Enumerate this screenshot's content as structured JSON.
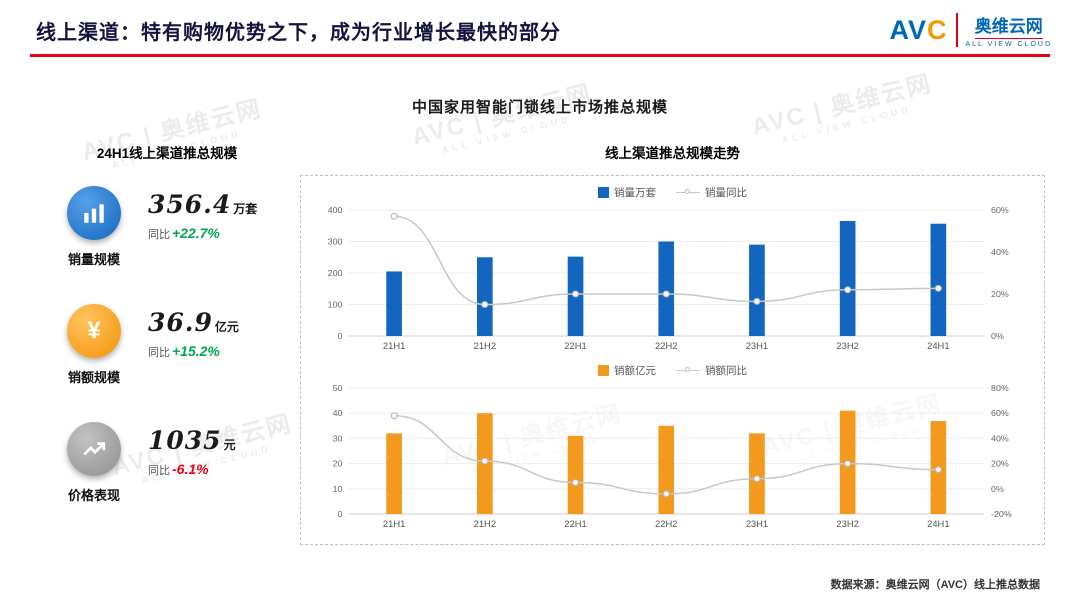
{
  "header": {
    "title": "线上渠道：特有购物优势之下，成为行业增长最快的部分",
    "logo": {
      "av": "AV",
      "c": "C",
      "cn": "奥维云网",
      "en": "ALL VIEW CLOUD"
    }
  },
  "main_title": "中国家用智能门锁线上市场推总规模",
  "left_panel": {
    "heading": "24H1线上渠道推总规模",
    "metrics": [
      {
        "label": "销量规模",
        "value": "356.4",
        "unit": "万套",
        "yoy_prefix": "同比",
        "yoy": "+22.7%",
        "yoy_color": "#00a651",
        "icon": "bar-chart-icon",
        "icon_bg": "#1266c0",
        "icon_bg_light": "#57a0e8"
      },
      {
        "label": "销额规模",
        "value": "36.9",
        "unit": "亿元",
        "yoy_prefix": "同比",
        "yoy": "+15.2%",
        "yoy_color": "#00a651",
        "icon": "yen-icon",
        "icon_bg": "#f39208",
        "icon_bg_light": "#ffc45e"
      },
      {
        "label": "价格表现",
        "value": "1035",
        "unit": "元",
        "yoy_prefix": "同比",
        "yoy": "-6.1%",
        "yoy_color": "#e60012",
        "icon": "line-chart-icon",
        "icon_bg": "#8f8f8f",
        "icon_bg_light": "#c2c2c2"
      }
    ]
  },
  "right_panel": {
    "heading": "线上渠道推总规模走势"
  },
  "chart_data": [
    {
      "type": "bar",
      "categories": [
        "21H1",
        "21H2",
        "22H1",
        "22H2",
        "23H1",
        "23H2",
        "24H1"
      ],
      "series": [
        {
          "name": "销量万套",
          "type": "bar",
          "color": "#1266c0",
          "values": [
            205,
            250,
            252,
            300,
            290,
            365,
            356.4
          ]
        },
        {
          "name": "销量同比",
          "type": "line",
          "color": "#c8c8c8",
          "axis": "right",
          "values": [
            57,
            15,
            20,
            20,
            16.5,
            22,
            22.7
          ]
        }
      ],
      "left_axis": {
        "min": 0,
        "max": 400,
        "tick_values": [
          0,
          100,
          200,
          300,
          400
        ],
        "tick_labels": [
          "0",
          "100",
          "200",
          "300",
          "400"
        ]
      },
      "right_axis": {
        "min": 0,
        "max": 60,
        "tick_values": [
          0,
          20,
          40,
          60
        ],
        "tick_labels": [
          "0%",
          "20%",
          "40%",
          "60%"
        ]
      },
      "grid": true,
      "legend_position": "top"
    },
    {
      "type": "bar",
      "categories": [
        "21H1",
        "21H2",
        "22H1",
        "22H2",
        "23H1",
        "23H2",
        "24H1"
      ],
      "series": [
        {
          "name": "销额亿元",
          "type": "bar",
          "color": "#f39a1e",
          "values": [
            32,
            40,
            31,
            35,
            32,
            41,
            36.9
          ]
        },
        {
          "name": "销额同比",
          "type": "line",
          "color": "#c8c8c8",
          "axis": "right",
          "values": [
            58,
            22,
            5,
            -4,
            8,
            20,
            15.2
          ]
        }
      ],
      "left_axis": {
        "min": 0,
        "max": 50,
        "tick_values": [
          0,
          10,
          20,
          30,
          40,
          50
        ],
        "tick_labels": [
          "0",
          "10",
          "20",
          "30",
          "40",
          "50"
        ]
      },
      "right_axis": {
        "min": -20,
        "max": 80,
        "tick_values": [
          -20,
          0,
          20,
          40,
          60,
          80
        ],
        "tick_labels": [
          "-20%",
          "0%",
          "20%",
          "40%",
          "60%",
          "80%"
        ]
      },
      "grid": true,
      "legend_position": "top"
    }
  ],
  "footer": {
    "source": "数据来源：奥维云网（AVC）线上推总数据"
  },
  "watermark": {
    "line1": "AVC | 奥维云网",
    "line2": "ALL VIEW CLOUD"
  }
}
